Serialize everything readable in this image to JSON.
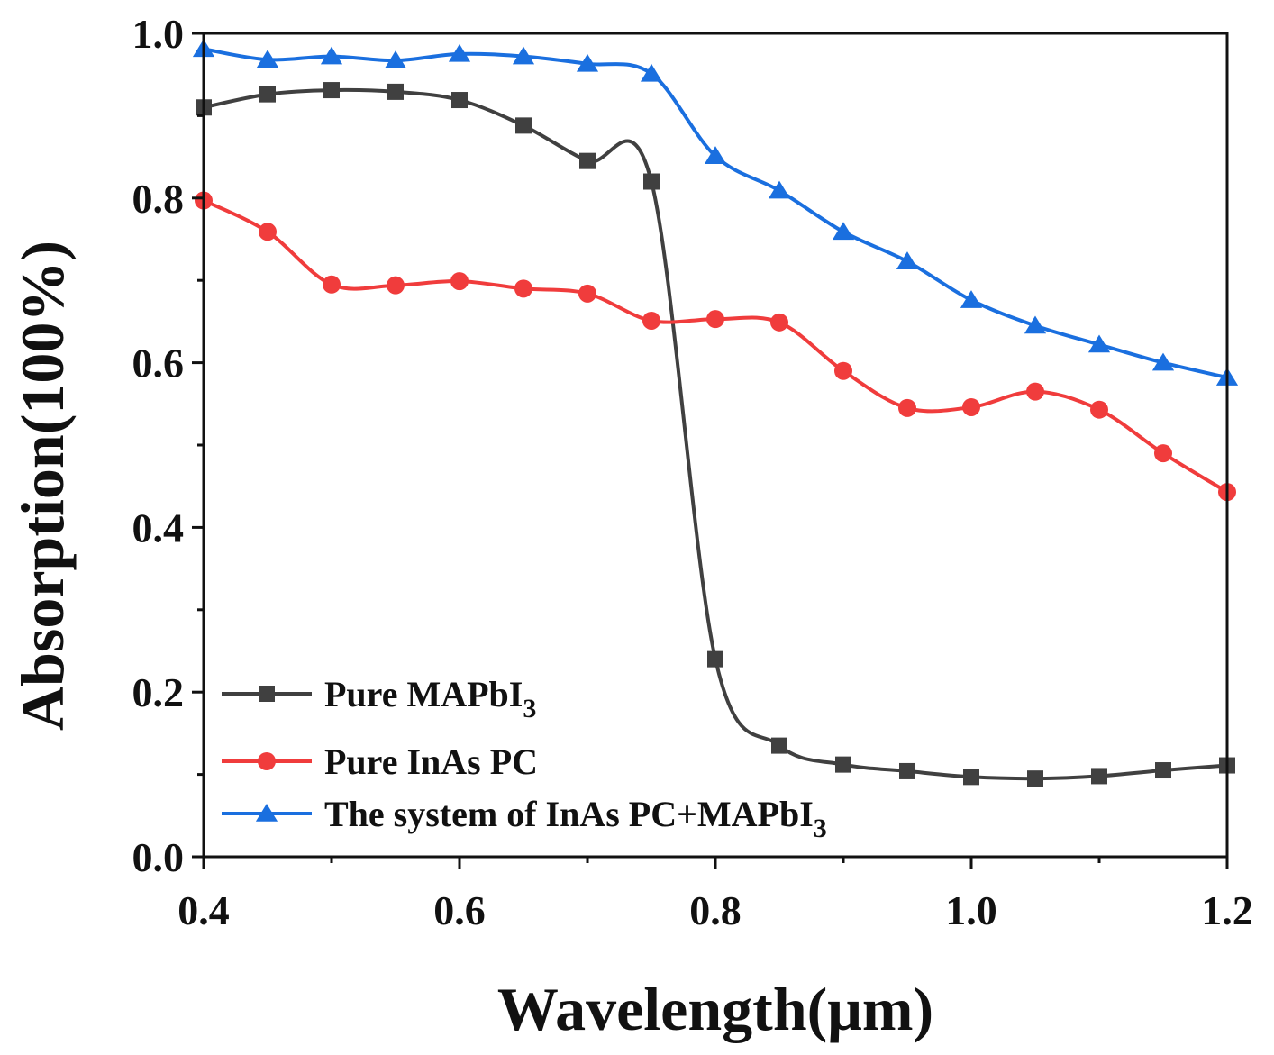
{
  "chart_data": {
    "type": "line",
    "title": "",
    "xlabel": "Wavelength(μm)",
    "ylabel": "Absorption(100%)",
    "xlim": [
      0.4,
      1.2
    ],
    "ylim": [
      0.0,
      1.0
    ],
    "xticks": [
      "0.4",
      "0.6",
      "0.8",
      "1.0",
      "1.2"
    ],
    "yticks": [
      "0.0",
      "0.2",
      "0.4",
      "0.6",
      "0.8",
      "1.0"
    ],
    "grid": false,
    "legend_position": "bottom-left",
    "x": [
      0.4,
      0.45,
      0.5,
      0.55,
      0.6,
      0.65,
      0.7,
      0.75,
      0.8,
      0.85,
      0.9,
      0.95,
      1.0,
      1.05,
      1.1,
      1.15,
      1.2
    ],
    "series": [
      {
        "name": "Pure MAPbI3",
        "label_main": "Pure MAPbI",
        "label_sub": "3",
        "color": "#404040",
        "marker": "square",
        "values": [
          0.91,
          0.926,
          0.931,
          0.929,
          0.919,
          0.888,
          0.845,
          0.82,
          0.24,
          0.135,
          0.112,
          0.104,
          0.097,
          0.095,
          0.098,
          0.105,
          0.111
        ]
      },
      {
        "name": "Pure InAs PC",
        "label_main": "Pure InAs PC",
        "label_sub": "",
        "color": "#f03c3c",
        "marker": "circle",
        "values": [
          0.797,
          0.759,
          0.695,
          0.694,
          0.699,
          0.69,
          0.684,
          0.651,
          0.653,
          0.649,
          0.59,
          0.545,
          0.546,
          0.565,
          0.543,
          0.49,
          0.443
        ]
      },
      {
        "name": "The system of InAs PC+MAPbI3",
        "label_main": "The system of InAs PC+MAPbI",
        "label_sub": "3",
        "color": "#1a6fdf",
        "marker": "triangle",
        "values": [
          0.981,
          0.968,
          0.972,
          0.967,
          0.975,
          0.972,
          0.963,
          0.951,
          0.851,
          0.809,
          0.759,
          0.723,
          0.676,
          0.645,
          0.622,
          0.6,
          0.582
        ]
      }
    ]
  }
}
